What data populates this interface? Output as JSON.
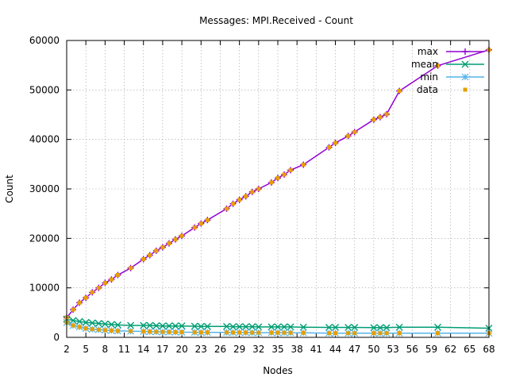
{
  "chart_data": {
    "type": "line",
    "title": "Messages: MPI.Received - Count",
    "xlabel": "Nodes",
    "ylabel": "Count",
    "xlim": [
      2,
      68
    ],
    "ylim": [
      0,
      60000
    ],
    "x_ticks": [
      "2",
      "5",
      "8",
      "11",
      "14",
      "17",
      "20",
      "23",
      "26",
      "29",
      "32",
      "35",
      "38",
      "41",
      "44",
      "47",
      "50",
      "53",
      "56",
      "59",
      "62",
      "65",
      "68"
    ],
    "y_ticks": [
      "0",
      "10000",
      "20000",
      "30000",
      "40000",
      "50000",
      "60000"
    ],
    "grid": true,
    "legend_position": "top-right",
    "series": [
      {
        "name": "max",
        "color": "#9400d3",
        "marker": "plus",
        "points": [
          [
            2,
            4000
          ],
          [
            3,
            5600
          ],
          [
            4,
            7000
          ],
          [
            5,
            8000
          ],
          [
            6,
            9100
          ],
          [
            7,
            10000
          ],
          [
            8,
            11000
          ],
          [
            9,
            11700
          ],
          [
            10,
            12600
          ],
          [
            12,
            14000
          ],
          [
            14,
            15800
          ],
          [
            15,
            16600
          ],
          [
            16,
            17500
          ],
          [
            17,
            18200
          ],
          [
            18,
            19000
          ],
          [
            19,
            19800
          ],
          [
            20,
            20500
          ],
          [
            22,
            22200
          ],
          [
            23,
            23000
          ],
          [
            24,
            23700
          ],
          [
            27,
            26000
          ],
          [
            28,
            27000
          ],
          [
            29,
            27800
          ],
          [
            30,
            28500
          ],
          [
            31,
            29400
          ],
          [
            32,
            30000
          ],
          [
            34,
            31300
          ],
          [
            35,
            32200
          ],
          [
            36,
            32900
          ],
          [
            37,
            33800
          ],
          [
            39,
            34900
          ],
          [
            43,
            38400
          ],
          [
            44,
            39300
          ],
          [
            46,
            40700
          ],
          [
            47,
            41500
          ],
          [
            50,
            44000
          ],
          [
            51,
            44500
          ],
          [
            52,
            45100
          ],
          [
            54,
            49800
          ],
          [
            60,
            54900
          ],
          [
            68,
            58100
          ]
        ]
      },
      {
        "name": "mean",
        "color": "#009e73",
        "marker": "x",
        "points": [
          [
            2,
            3700
          ],
          [
            3,
            3400
          ],
          [
            4,
            3200
          ],
          [
            5,
            3000
          ],
          [
            6,
            2900
          ],
          [
            7,
            2800
          ],
          [
            8,
            2700
          ],
          [
            9,
            2600
          ],
          [
            10,
            2500
          ],
          [
            12,
            2400
          ],
          [
            14,
            2400
          ],
          [
            15,
            2400
          ],
          [
            16,
            2350
          ],
          [
            17,
            2300
          ],
          [
            18,
            2300
          ],
          [
            19,
            2300
          ],
          [
            20,
            2300
          ],
          [
            22,
            2250
          ],
          [
            23,
            2200
          ],
          [
            24,
            2200
          ],
          [
            27,
            2200
          ],
          [
            28,
            2150
          ],
          [
            29,
            2150
          ],
          [
            30,
            2150
          ],
          [
            31,
            2150
          ],
          [
            32,
            2100
          ],
          [
            34,
            2100
          ],
          [
            35,
            2100
          ],
          [
            36,
            2100
          ],
          [
            37,
            2100
          ],
          [
            39,
            2050
          ],
          [
            43,
            2000
          ],
          [
            44,
            2000
          ],
          [
            46,
            2000
          ],
          [
            47,
            2000
          ],
          [
            50,
            1950
          ],
          [
            51,
            1950
          ],
          [
            52,
            1950
          ],
          [
            54,
            2050
          ],
          [
            60,
            2050
          ],
          [
            68,
            1850
          ]
        ]
      },
      {
        "name": "min",
        "color": "#56b4e9",
        "marker": "star",
        "points": [
          [
            2,
            3000
          ],
          [
            3,
            2400
          ],
          [
            4,
            2100
          ],
          [
            5,
            1800
          ],
          [
            6,
            1650
          ],
          [
            7,
            1550
          ],
          [
            8,
            1450
          ],
          [
            9,
            1380
          ],
          [
            10,
            1300
          ],
          [
            12,
            1250
          ],
          [
            14,
            1200
          ],
          [
            15,
            1150
          ],
          [
            16,
            1120
          ],
          [
            17,
            1100
          ],
          [
            18,
            1080
          ],
          [
            19,
            1050
          ],
          [
            20,
            1050
          ],
          [
            22,
            1020
          ],
          [
            23,
            1000
          ],
          [
            24,
            1000
          ],
          [
            27,
            1000
          ],
          [
            28,
            980
          ],
          [
            29,
            980
          ],
          [
            30,
            970
          ],
          [
            31,
            960
          ],
          [
            32,
            950
          ],
          [
            34,
            950
          ],
          [
            35,
            940
          ],
          [
            36,
            940
          ],
          [
            37,
            930
          ],
          [
            39,
            920
          ],
          [
            43,
            850
          ],
          [
            44,
            850
          ],
          [
            46,
            850
          ],
          [
            47,
            850
          ],
          [
            50,
            850
          ],
          [
            51,
            850
          ],
          [
            52,
            850
          ],
          [
            54,
            850
          ],
          [
            60,
            850
          ],
          [
            68,
            850
          ]
        ]
      },
      {
        "name": "data",
        "color": "#e69f00",
        "marker": "square",
        "points": [
          [
            2,
            4000
          ],
          [
            3,
            5600
          ],
          [
            4,
            7000
          ],
          [
            5,
            8000
          ],
          [
            6,
            9100
          ],
          [
            7,
            10000
          ],
          [
            8,
            11000
          ],
          [
            9,
            11700
          ],
          [
            10,
            12600
          ],
          [
            12,
            14000
          ],
          [
            14,
            15800
          ],
          [
            15,
            16600
          ],
          [
            16,
            17500
          ],
          [
            17,
            18200
          ],
          [
            18,
            19000
          ],
          [
            19,
            19800
          ],
          [
            20,
            20500
          ],
          [
            22,
            22200
          ],
          [
            23,
            23000
          ],
          [
            24,
            23700
          ],
          [
            27,
            26000
          ],
          [
            28,
            27000
          ],
          [
            29,
            27800
          ],
          [
            30,
            28500
          ],
          [
            31,
            29400
          ],
          [
            32,
            30000
          ],
          [
            34,
            31300
          ],
          [
            35,
            32200
          ],
          [
            36,
            32900
          ],
          [
            37,
            33800
          ],
          [
            39,
            34900
          ],
          [
            43,
            38400
          ],
          [
            44,
            39300
          ],
          [
            46,
            40700
          ],
          [
            47,
            41500
          ],
          [
            50,
            44000
          ],
          [
            51,
            44500
          ],
          [
            52,
            45100
          ],
          [
            54,
            49800
          ],
          [
            60,
            54900
          ],
          [
            68,
            58100
          ],
          [
            2,
            3000
          ],
          [
            3,
            2400
          ],
          [
            4,
            2100
          ],
          [
            5,
            1800
          ],
          [
            6,
            1650
          ],
          [
            7,
            1550
          ],
          [
            8,
            1450
          ],
          [
            9,
            1380
          ],
          [
            10,
            1300
          ],
          [
            12,
            1250
          ],
          [
            14,
            1200
          ],
          [
            15,
            1150
          ],
          [
            16,
            1120
          ],
          [
            17,
            1100
          ],
          [
            18,
            1080
          ],
          [
            19,
            1050
          ],
          [
            20,
            1050
          ],
          [
            22,
            1020
          ],
          [
            23,
            1000
          ],
          [
            24,
            1000
          ],
          [
            27,
            1000
          ],
          [
            28,
            980
          ],
          [
            29,
            980
          ],
          [
            30,
            970
          ],
          [
            31,
            960
          ],
          [
            32,
            950
          ],
          [
            34,
            950
          ],
          [
            35,
            940
          ],
          [
            36,
            940
          ],
          [
            37,
            930
          ],
          [
            39,
            920
          ],
          [
            43,
            850
          ],
          [
            44,
            850
          ],
          [
            46,
            850
          ],
          [
            47,
            850
          ],
          [
            50,
            850
          ],
          [
            51,
            850
          ],
          [
            52,
            850
          ],
          [
            54,
            850
          ],
          [
            60,
            850
          ],
          [
            68,
            850
          ]
        ]
      }
    ]
  }
}
